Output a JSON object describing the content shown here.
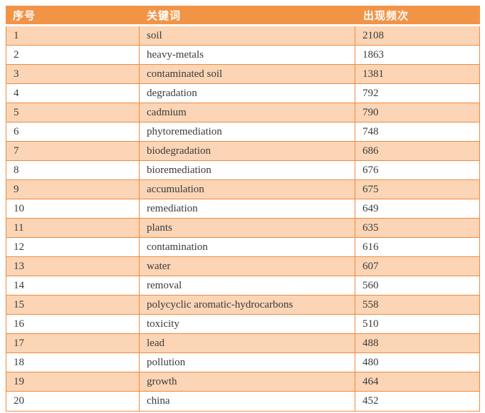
{
  "table": {
    "columns": [
      {
        "label": "序号"
      },
      {
        "label": "关键词"
      },
      {
        "label": "出现频次"
      }
    ],
    "rows": [
      {
        "index": "1",
        "keyword": "soil",
        "frequency": "2108"
      },
      {
        "index": "2",
        "keyword": "heavy-metals",
        "frequency": "1863"
      },
      {
        "index": "3",
        "keyword": "contaminated soil",
        "frequency": "1381"
      },
      {
        "index": "4",
        "keyword": "degradation",
        "frequency": "792"
      },
      {
        "index": "5",
        "keyword": "cadmium",
        "frequency": "790"
      },
      {
        "index": "6",
        "keyword": "phytoremediation",
        "frequency": "748"
      },
      {
        "index": "7",
        "keyword": "biodegradation",
        "frequency": "686"
      },
      {
        "index": "8",
        "keyword": "bioremediation",
        "frequency": "676"
      },
      {
        "index": "9",
        "keyword": "accumulation",
        "frequency": "675"
      },
      {
        "index": "10",
        "keyword": "remediation",
        "frequency": "649"
      },
      {
        "index": "11",
        "keyword": "plants",
        "frequency": "635"
      },
      {
        "index": "12",
        "keyword": "contamination",
        "frequency": "616"
      },
      {
        "index": "13",
        "keyword": "water",
        "frequency": "607"
      },
      {
        "index": "14",
        "keyword": "removal",
        "frequency": "560"
      },
      {
        "index": "15",
        "keyword": "polycyclic aromatic-hydrocarbons",
        "frequency": "558"
      },
      {
        "index": "16",
        "keyword": "toxicity",
        "frequency": "510"
      },
      {
        "index": "17",
        "keyword": "lead",
        "frequency": "488"
      },
      {
        "index": "18",
        "keyword": "pollution",
        "frequency": "480"
      },
      {
        "index": "19",
        "keyword": "growth",
        "frequency": "464"
      },
      {
        "index": "20",
        "keyword": "china",
        "frequency": "452"
      }
    ]
  },
  "colors": {
    "header_bg": "#F29446",
    "row_alt_bg": "#FBD5B5",
    "row_bg": "#FFFFFF",
    "border": "#EE8A3F",
    "header_text": "#FFFFFF",
    "body_text": "#3B3B3B"
  }
}
